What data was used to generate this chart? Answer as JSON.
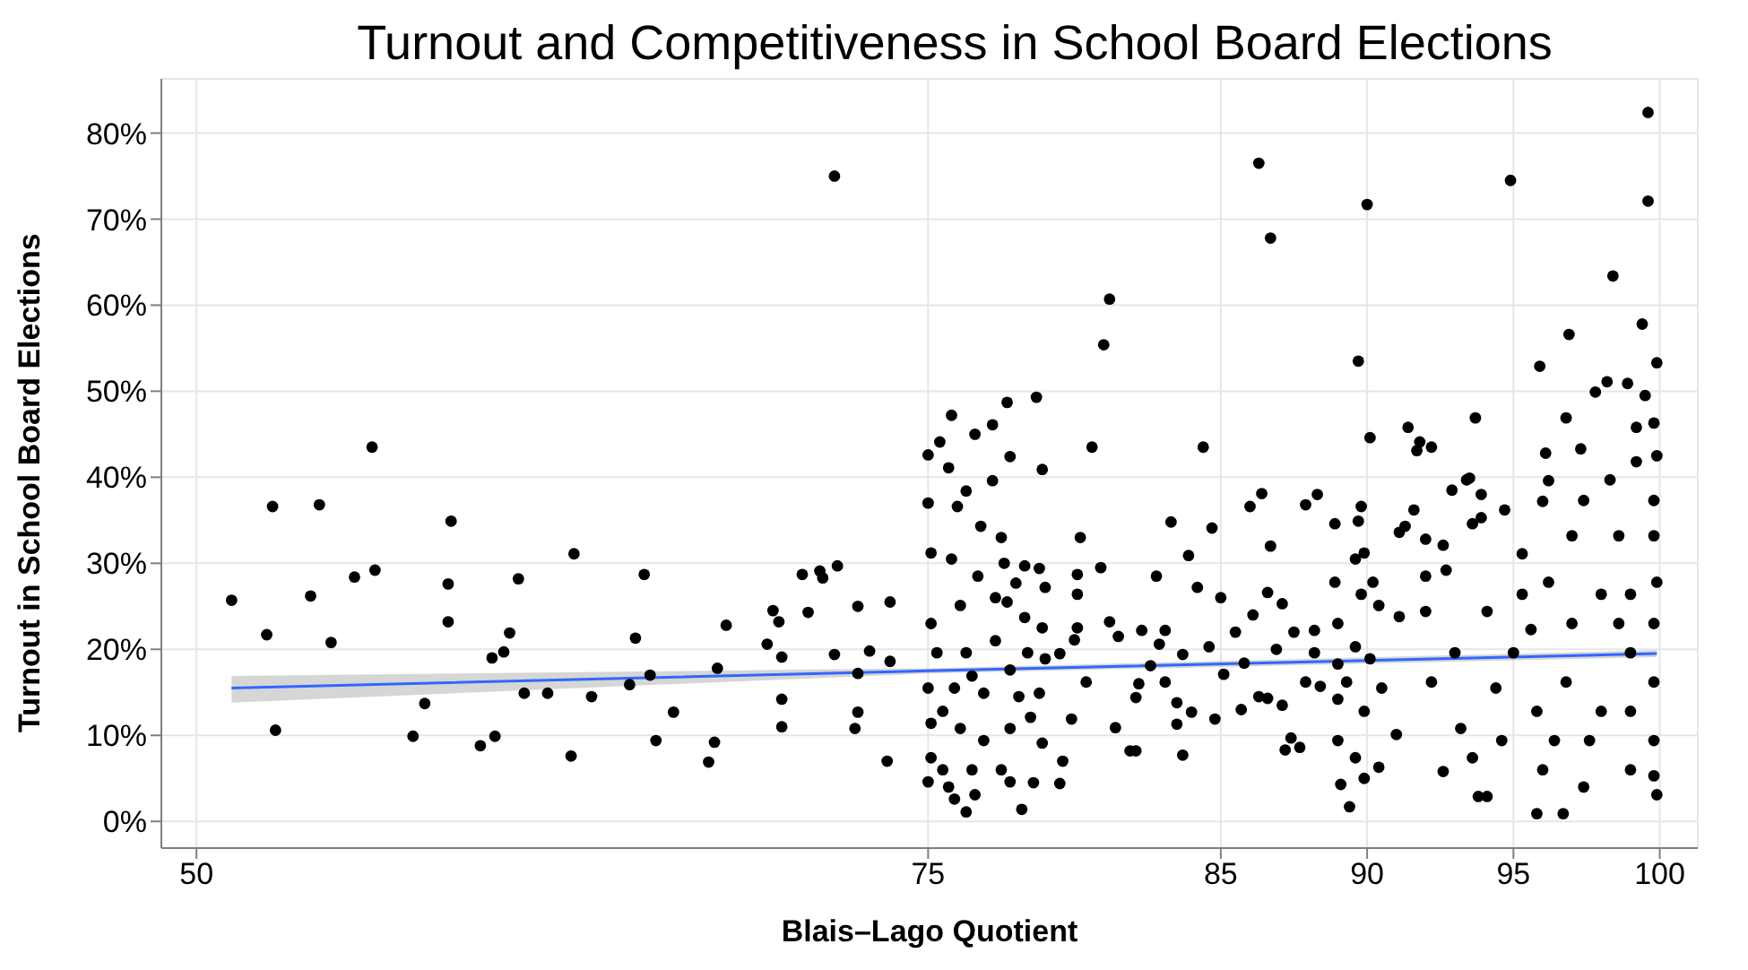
{
  "chart_data": {
    "type": "scatter",
    "title": "Turnout and Competitiveness in School Board Elections",
    "xlabel": "Blais–Lago Quotient",
    "ylabel": "Turnout in School Board Elections",
    "xlim": [
      48.8,
      101.3
    ],
    "xticks": [
      50,
      75,
      85,
      90,
      95,
      100
    ],
    "ylim": [
      -3.1,
      86.3
    ],
    "yticks": [
      {
        "value": 0,
        "label": "0%"
      },
      {
        "value": 10,
        "label": "10%"
      },
      {
        "value": 20,
        "label": "20%"
      },
      {
        "value": 30,
        "label": "30%"
      },
      {
        "value": 40,
        "label": "40%"
      },
      {
        "value": 50,
        "label": "50%"
      },
      {
        "value": 60,
        "label": "60%"
      },
      {
        "value": 70,
        "label": "70%"
      },
      {
        "value": 80,
        "label": "80%"
      }
    ],
    "grid": true,
    "marker": "circle",
    "series": [
      {
        "color": "#000000",
        "x": [
          51.2,
          52.4,
          52.6,
          52.7,
          53.9,
          54.2,
          54.6,
          55.4,
          56.0,
          56.1,
          57.4,
          57.8,
          58.6,
          58.6,
          58.7,
          59.7,
          60.1,
          60.2,
          60.5,
          60.7,
          61.0,
          61.2,
          62.0,
          62.8,
          62.9,
          63.5,
          64.8,
          65.0,
          65.3,
          65.5,
          65.7,
          66.3,
          67.5,
          67.7,
          67.8,
          68.1,
          69.5,
          69.7,
          69.9,
          70.0,
          70.0,
          70.0,
          70.7,
          70.9,
          71.3,
          71.4,
          71.8,
          71.8,
          71.9,
          72.6,
          72.5,
          72.6,
          72.6,
          73.0,
          73.7,
          73.6,
          73.7,
          75.0,
          75.4,
          75.8,
          75.0,
          75.7,
          76.0,
          76.6,
          77.2,
          77.7,
          78.7,
          77.8,
          78.9,
          77.2,
          76.3,
          76.8,
          77.5,
          75.1,
          75.8,
          76.7,
          77.6,
          78.3,
          78.8,
          79.0,
          78.0,
          77.3,
          77.7,
          75.1,
          76.1,
          78.3,
          78.9,
          75.3,
          76.3,
          77.3,
          77.8,
          78.4,
          79.0,
          79.5,
          75.0,
          75.9,
          76.9,
          78.1,
          78.8,
          75.1,
          76.1,
          76.9,
          77.8,
          78.5,
          75.1,
          75.7,
          75.9,
          76.3,
          76.6,
          77.8,
          78.2,
          78.6,
          78.9,
          79.5,
          79.6,
          75.0,
          75.5,
          76.5,
          77.5,
          75.5,
          76.5,
          80.2,
          80.1,
          80.1,
          80.1,
          80.0,
          79.9,
          80.6,
          80.9,
          81.0,
          81.2,
          81.2,
          81.5,
          81.4,
          80.4,
          81.9,
          82.1,
          82.1,
          82.2,
          82.3,
          82.6,
          82.8,
          82.9,
          83.1,
          83.1,
          83.3,
          83.5,
          83.5,
          83.7,
          83.7,
          83.9,
          84.0,
          84.2,
          84.4,
          84.6,
          84.7,
          84.8,
          85.0,
          85.1,
          85.5,
          85.7,
          85.8,
          86.0,
          86.1,
          86.3,
          86.4,
          86.3,
          86.6,
          86.7,
          86.7,
          86.6,
          86.9,
          87.1,
          87.1,
          87.2,
          87.4,
          87.5,
          87.7,
          87.9,
          87.9,
          88.2,
          88.2,
          88.3,
          88.4,
          88.9,
          88.9,
          89.0,
          89.0,
          89.0,
          89.0,
          89.1,
          89.4,
          89.7,
          90.0,
          90.1,
          89.8,
          89.7,
          89.6,
          89.9,
          89.8,
          90.2,
          89.6,
          90.1,
          89.3,
          89.9,
          89.6,
          89.9,
          90.4,
          90.4,
          90.5,
          91.1,
          91.1,
          91.3,
          91.4,
          91.6,
          91.7,
          91.8,
          91.0,
          92.0,
          92.0,
          92.0,
          92.2,
          92.2,
          92.6,
          92.6,
          92.7,
          92.9,
          93.0,
          93.2,
          93.4,
          93.5,
          93.6,
          93.7,
          93.6,
          93.8,
          93.9,
          93.9,
          94.1,
          94.1,
          94.4,
          94.6,
          94.7,
          94.9,
          95.0,
          95.3,
          95.3,
          95.6,
          95.8,
          95.9,
          96.0,
          96.1,
          96.2,
          96.0,
          96.7,
          96.8,
          96.9,
          97.0,
          96.8,
          97.3,
          97.4,
          97.4,
          97.8,
          98.0,
          98.0,
          98.2,
          98.3,
          98.4,
          98.6,
          98.9,
          99.0,
          99.0,
          99.2,
          99.2,
          99.4,
          99.5,
          99.6,
          99.6,
          99.8,
          99.8,
          99.9,
          99.9,
          99.9,
          99.8,
          99.8,
          99.9,
          99.8,
          99.8,
          99.8,
          99.0,
          99.0,
          98.6,
          97.0,
          96.2,
          95.8,
          96.4,
          97.6
        ],
        "values": [
          25.7,
          21.7,
          36.6,
          10.6,
          26.2,
          36.8,
          20.8,
          28.4,
          43.5,
          29.2,
          9.9,
          13.7,
          27.6,
          23.2,
          34.9,
          8.8,
          19.0,
          9.9,
          19.7,
          21.9,
          28.2,
          14.9,
          14.9,
          7.6,
          31.1,
          14.5,
          15.9,
          21.3,
          28.7,
          17.0,
          9.4,
          12.7,
          6.9,
          9.2,
          17.8,
          22.8,
          20.6,
          24.5,
          23.2,
          19.1,
          14.2,
          11.0,
          28.7,
          24.3,
          29.1,
          28.3,
          19.4,
          75.0,
          29.7,
          12.7,
          10.8,
          25.0,
          17.2,
          19.8,
          25.5,
          7.0,
          18.6,
          42.6,
          44.1,
          47.2,
          37.0,
          41.1,
          36.6,
          45.0,
          46.1,
          48.7,
          49.3,
          42.4,
          40.9,
          39.6,
          38.4,
          34.3,
          33.0,
          31.2,
          30.5,
          28.5,
          30.0,
          29.7,
          29.4,
          27.2,
          27.7,
          26.0,
          25.5,
          23.0,
          25.1,
          23.7,
          22.5,
          19.6,
          19.6,
          21.0,
          17.6,
          19.6,
          18.9,
          19.5,
          15.5,
          15.5,
          14.9,
          14.5,
          14.9,
          11.4,
          10.8,
          9.4,
          10.8,
          12.1,
          7.4,
          4.0,
          2.6,
          1.1,
          3.1,
          4.6,
          1.4,
          4.5,
          9.1,
          4.4,
          7.0,
          4.6,
          6.0,
          6.0,
          6.0,
          12.8,
          16.9,
          33.0,
          28.7,
          26.4,
          22.5,
          21.1,
          11.9,
          43.5,
          29.5,
          55.4,
          60.7,
          23.2,
          21.5,
          10.9,
          16.2,
          8.2,
          8.2,
          14.4,
          16.0,
          22.2,
          18.1,
          28.5,
          20.6,
          16.2,
          22.2,
          34.8,
          13.8,
          11.3,
          7.7,
          19.4,
          30.9,
          12.7,
          27.2,
          43.5,
          20.3,
          34.1,
          11.9,
          26.0,
          17.1,
          22.0,
          13.0,
          18.4,
          36.6,
          24.0,
          76.5,
          38.1,
          14.5,
          14.3,
          32.0,
          67.8,
          26.6,
          20.0,
          25.3,
          13.5,
          8.3,
          9.7,
          22.0,
          8.6,
          36.8,
          16.2,
          22.2,
          19.6,
          38.0,
          15.7,
          34.6,
          27.8,
          23.0,
          18.3,
          14.2,
          9.4,
          4.3,
          1.7,
          53.5,
          71.7,
          44.6,
          36.6,
          34.9,
          30.5,
          31.2,
          26.4,
          27.8,
          20.3,
          18.9,
          16.2,
          12.8,
          7.4,
          5.0,
          6.3,
          25.1,
          15.5,
          23.8,
          33.6,
          34.3,
          45.8,
          36.2,
          43.1,
          44.1,
          10.1,
          32.8,
          28.5,
          24.4,
          43.5,
          16.2,
          32.1,
          5.8,
          29.2,
          38.5,
          19.6,
          10.8,
          39.7,
          39.9,
          34.6,
          46.9,
          7.4,
          2.9,
          38.0,
          35.3,
          2.9,
          24.4,
          15.5,
          9.4,
          36.2,
          74.5,
          19.6,
          26.4,
          31.1,
          22.3,
          0.9,
          52.9,
          37.2,
          42.8,
          39.6,
          6.0,
          0.9,
          46.9,
          56.6,
          33.2,
          16.2,
          43.3,
          4.0,
          37.3,
          49.9,
          26.4,
          12.8,
          51.1,
          39.7,
          63.4,
          33.2,
          50.9,
          19.6,
          6.0,
          45.8,
          41.8,
          57.8,
          49.5,
          82.4,
          72.1,
          37.3,
          46.3,
          42.5,
          53.3,
          3.1,
          5.3,
          33.2,
          27.8,
          23.0,
          16.2,
          9.4,
          26.4,
          12.8,
          23.0,
          23.0,
          27.8,
          12.8,
          9.4,
          9.4
        ]
      },
      {
        "type": "line",
        "color": "#3366ff",
        "marker": "none",
        "x": [
          51.2,
          75.0,
          99.9
        ],
        "values": [
          15.5,
          17.5,
          19.5
        ],
        "lower": [
          13.8,
          17.2,
          19.1
        ],
        "upper": [
          16.9,
          17.8,
          19.9
        ]
      }
    ]
  }
}
